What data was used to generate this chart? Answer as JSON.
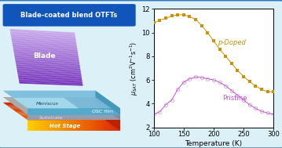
{
  "title": "Blade-coated blend OTFTs",
  "xlabel": "Temperature (K)",
  "xlim": [
    100,
    300
  ],
  "ylim": [
    2,
    12
  ],
  "yticks": [
    2,
    4,
    6,
    8,
    10,
    12
  ],
  "xticks": [
    100,
    150,
    200,
    250,
    300
  ],
  "doped_color": "#C8920A",
  "pristine_color": "#BB55CC",
  "bg_color": "#DCF0F8",
  "border_color": "#3377BB",
  "doped_T": [
    100,
    110,
    120,
    130,
    140,
    150,
    160,
    170,
    180,
    190,
    200,
    210,
    220,
    230,
    240,
    250,
    260,
    270,
    280,
    290,
    300
  ],
  "doped_mu": [
    10.8,
    11.05,
    11.2,
    11.4,
    11.5,
    11.5,
    11.35,
    11.1,
    10.6,
    10.0,
    9.3,
    8.6,
    8.0,
    7.4,
    6.8,
    6.3,
    5.85,
    5.5,
    5.2,
    5.0,
    5.0
  ],
  "pristine_T": [
    100,
    110,
    120,
    130,
    140,
    150,
    160,
    170,
    180,
    190,
    200,
    210,
    220,
    230,
    240,
    250,
    260,
    270,
    280,
    290,
    300
  ],
  "pristine_mu": [
    3.1,
    3.3,
    3.9,
    4.3,
    5.2,
    5.8,
    6.1,
    6.25,
    6.2,
    6.1,
    6.0,
    5.8,
    5.5,
    5.1,
    4.7,
    4.3,
    3.9,
    3.6,
    3.35,
    3.2,
    3.1
  ],
  "label_doped": "p-Doped",
  "label_pristine": "Pristine"
}
